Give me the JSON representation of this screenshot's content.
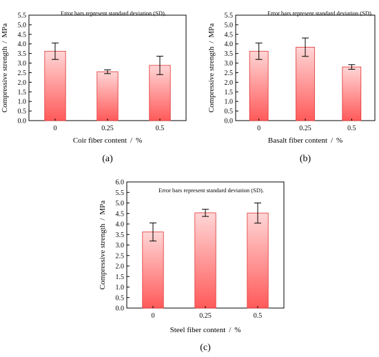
{
  "chart_data": [
    {
      "type": "bar",
      "panel_label": "(a)",
      "note": "Error bars represent standard deviation (SD).",
      "categories": [
        "0",
        "0.25",
        "0.5"
      ],
      "values": [
        3.62,
        2.55,
        2.88
      ],
      "errors": [
        0.43,
        0.1,
        0.48
      ],
      "xlabel": "Coir fiber content  /  %",
      "ylabel": "Compressive strength  /  MPa",
      "ylim": [
        0,
        5.5
      ],
      "yticks": [
        "0.0",
        "0.5",
        "1.0",
        "1.5",
        "2.0",
        "2.5",
        "3.0",
        "3.5",
        "4.0",
        "4.5",
        "5.0",
        "5.5"
      ],
      "grid": false,
      "bar_fill": {
        "top": "#ffd6d6",
        "bottom": "#ff5a5a"
      },
      "bar_stroke": "#e03030"
    },
    {
      "type": "bar",
      "panel_label": "(b)",
      "note": "Error bars represent standard deviation (SD).",
      "categories": [
        "0",
        "0.25",
        "0.5"
      ],
      "values": [
        3.62,
        3.83,
        2.8
      ],
      "errors": [
        0.43,
        0.48,
        0.12
      ],
      "xlabel": "Basalt fiber content  /  %",
      "ylabel": "Compressive strength  /  MPa",
      "ylim": [
        0,
        5.5
      ],
      "yticks": [
        "0.0",
        "0.5",
        "1.0",
        "1.5",
        "2.0",
        "2.5",
        "3.0",
        "3.5",
        "4.0",
        "4.5",
        "5.0",
        "5.5"
      ],
      "grid": false,
      "bar_fill": {
        "top": "#ffd6d6",
        "bottom": "#ff5a5a"
      },
      "bar_stroke": "#e03030"
    },
    {
      "type": "bar",
      "panel_label": "(c)",
      "note": "Error bars represent standard deviation (SD).",
      "categories": [
        "0",
        "0.25",
        "0.5"
      ],
      "values": [
        3.62,
        4.53,
        4.52
      ],
      "errors": [
        0.43,
        0.17,
        0.48
      ],
      "xlabel": "Steel fiber content  /  %",
      "ylabel": "Compressive strength  /  MPa",
      "ylim": [
        0,
        6
      ],
      "yticks": [
        "0.0",
        "0.5",
        "1.0",
        "1.5",
        "2.0",
        "2.5",
        "3.0",
        "3.5",
        "4.0",
        "4.5",
        "5.0",
        "5.5",
        "6.0"
      ],
      "grid": false,
      "bar_fill": {
        "top": "#ffd6d6",
        "bottom": "#ff5a5a"
      },
      "bar_stroke": "#e03030"
    }
  ]
}
